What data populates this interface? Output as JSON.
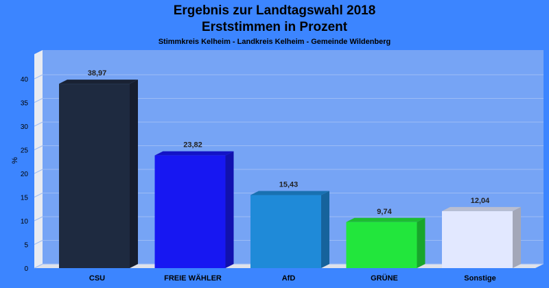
{
  "chart_data": {
    "type": "bar",
    "title": "Ergebnis zur Landtagswahl 2018",
    "subtitle": "Erststimmen in Prozent",
    "subtitle2": "Stimmkreis Kelheim - Landkreis Kelheim - Gemeinde Wildenberg",
    "ylabel": "%",
    "ylim": [
      0,
      40
    ],
    "yticks": [
      "0",
      "5",
      "10",
      "15",
      "20",
      "25",
      "30",
      "35",
      "40"
    ],
    "categories": [
      "CSU",
      "FREIE WÄHLER",
      "AfD",
      "GRÜNE",
      "Sonstige"
    ],
    "values": [
      38.97,
      23.82,
      15.43,
      9.74,
      12.04
    ],
    "value_labels": [
      "38,97",
      "23,82",
      "15,43",
      "9,74",
      "12,04"
    ],
    "colors": [
      "#1e2a40",
      "#1717f2",
      "#1f8ad8",
      "#22e63c",
      "#e2e8ff"
    ],
    "grid": true,
    "background": "#3c85ff",
    "plot_background": "#76a4f5"
  }
}
